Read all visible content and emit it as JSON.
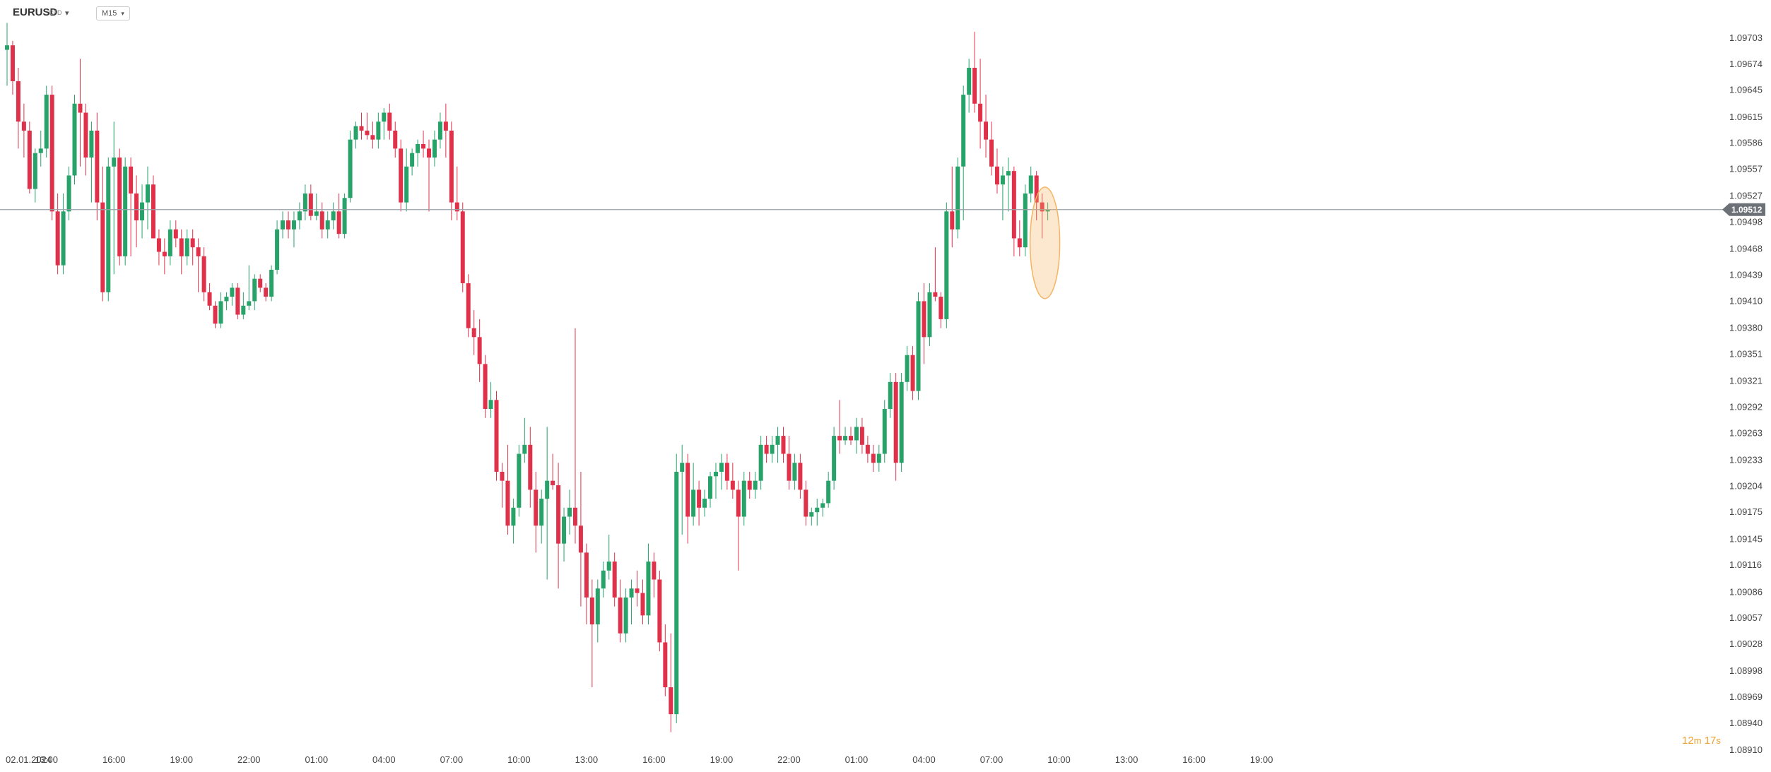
{
  "header": {
    "symbol": "EURUSD",
    "instrument_type": "CFD",
    "timeframe": "M15"
  },
  "countdown": {
    "minutes": "12",
    "minutes_unit": "m",
    "seconds": "17",
    "seconds_unit": "s"
  },
  "colors": {
    "up": "#27a36a",
    "down": "#e0314b",
    "current_price_line": "#9aa0a6",
    "badge": "#6b7177",
    "highlight": "#f5b461"
  },
  "chart_data": {
    "type": "candlestick",
    "symbol": "EURUSD",
    "timeframe": "M15",
    "ylim": [
      1.0891,
      1.0973
    ],
    "y_ticks": [
      "1.09703",
      "1.09674",
      "1.09645",
      "1.09615",
      "1.09586",
      "1.09557",
      "1.09527",
      "1.09498",
      "1.09468",
      "1.09439",
      "1.09410",
      "1.09380",
      "1.09351",
      "1.09321",
      "1.09292",
      "1.09263",
      "1.09233",
      "1.09204",
      "1.09175",
      "1.09145",
      "1.09116",
      "1.09086",
      "1.09057",
      "1.09028",
      "1.08998",
      "1.08969",
      "1.08940",
      "1.08910"
    ],
    "current_price": "1.09512",
    "x_ticks": [
      "02.01.2024",
      "13:00",
      "16:00",
      "19:00",
      "22:00",
      "01:00",
      "04:00",
      "07:00",
      "10:00",
      "13:00",
      "16:00",
      "19:00",
      "22:00",
      "01:00",
      "04:00",
      "07:00",
      "10:00",
      "13:00",
      "16:00",
      "19:00"
    ],
    "candles_per_hour": 4,
    "first_tick_candle_index": 7,
    "candles": [
      [
        1.0969,
        1.0972,
        1.0965,
        1.09695
      ],
      [
        1.09695,
        1.097,
        1.0964,
        1.09655
      ],
      [
        1.09655,
        1.0967,
        1.0958,
        1.0961
      ],
      [
        1.0961,
        1.0963,
        1.0957,
        1.096
      ],
      [
        1.096,
        1.0961,
        1.0953,
        1.09535
      ],
      [
        1.09535,
        1.0958,
        1.0952,
        1.09575
      ],
      [
        1.09575,
        1.096,
        1.0956,
        1.0958
      ],
      [
        1.0958,
        1.0965,
        1.0957,
        1.0964
      ],
      [
        1.0964,
        1.0965,
        1.095,
        1.0951
      ],
      [
        1.0951,
        1.0953,
        1.0944,
        1.0945
      ],
      [
        1.0945,
        1.0953,
        1.0944,
        1.0951
      ],
      [
        1.0951,
        1.0956,
        1.095,
        1.0955
      ],
      [
        1.0955,
        1.0964,
        1.0954,
        1.0963
      ],
      [
        1.0963,
        1.0968,
        1.0956,
        1.0962
      ],
      [
        1.0962,
        1.0963,
        1.0955,
        1.0957
      ],
      [
        1.0957,
        1.0961,
        1.0952,
        1.096
      ],
      [
        1.096,
        1.0962,
        1.095,
        1.0952
      ],
      [
        1.0952,
        1.0956,
        1.0941,
        1.0942
      ],
      [
        1.0942,
        1.0957,
        1.0941,
        1.0956
      ],
      [
        1.0956,
        1.0961,
        1.0944,
        1.0957
      ],
      [
        1.0957,
        1.0958,
        1.0945,
        1.0946
      ],
      [
        1.0946,
        1.0957,
        1.0945,
        1.0956
      ],
      [
        1.0956,
        1.0957,
        1.0946,
        1.0953
      ],
      [
        1.0953,
        1.0955,
        1.0947,
        1.095
      ],
      [
        1.095,
        1.0954,
        1.0948,
        1.0952
      ],
      [
        1.0952,
        1.0956,
        1.0949,
        1.0954
      ],
      [
        1.0954,
        1.0955,
        1.0948,
        1.0948
      ],
      [
        1.0948,
        1.0949,
        1.0945,
        1.09465
      ],
      [
        1.09465,
        1.0948,
        1.0944,
        1.0946
      ],
      [
        1.0946,
        1.095,
        1.0945,
        1.0949
      ],
      [
        1.0949,
        1.095,
        1.0947,
        1.0948
      ],
      [
        1.0948,
        1.0949,
        1.0944,
        1.0946
      ],
      [
        1.0946,
        1.0949,
        1.0945,
        1.0948
      ],
      [
        1.0948,
        1.0949,
        1.0945,
        1.0947
      ],
      [
        1.0947,
        1.0948,
        1.0942,
        1.0946
      ],
      [
        1.0946,
        1.0947,
        1.0941,
        1.0942
      ],
      [
        1.0942,
        1.0943,
        1.094,
        1.09405
      ],
      [
        1.09405,
        1.0941,
        1.0938,
        1.09385
      ],
      [
        1.09385,
        1.0942,
        1.0938,
        1.0941
      ],
      [
        1.0941,
        1.0942,
        1.094,
        1.09415
      ],
      [
        1.09415,
        1.0943,
        1.09405,
        1.09425
      ],
      [
        1.09425,
        1.0943,
        1.0939,
        1.09395
      ],
      [
        1.09395,
        1.0942,
        1.0939,
        1.09405
      ],
      [
        1.09405,
        1.0945,
        1.094,
        1.0941
      ],
      [
        1.0941,
        1.0944,
        1.094,
        1.09435
      ],
      [
        1.09435,
        1.0944,
        1.0942,
        1.09425
      ],
      [
        1.09425,
        1.0943,
        1.0941,
        1.09415
      ],
      [
        1.09415,
        1.0945,
        1.0941,
        1.09445
      ],
      [
        1.09445,
        1.095,
        1.0944,
        1.0949
      ],
      [
        1.0949,
        1.0951,
        1.0948,
        1.095
      ],
      [
        1.095,
        1.0951,
        1.0948,
        1.0949
      ],
      [
        1.0949,
        1.0951,
        1.0947,
        1.095
      ],
      [
        1.095,
        1.0952,
        1.0949,
        1.0951
      ],
      [
        1.0951,
        1.0954,
        1.095,
        1.0953
      ],
      [
        1.0953,
        1.0954,
        1.095,
        1.09505
      ],
      [
        1.09505,
        1.0953,
        1.095,
        1.0951
      ],
      [
        1.0951,
        1.0952,
        1.0948,
        1.0949
      ],
      [
        1.0949,
        1.0951,
        1.0948,
        1.095
      ],
      [
        1.095,
        1.0952,
        1.0949,
        1.0951
      ],
      [
        1.0951,
        1.0953,
        1.0948,
        1.09485
      ],
      [
        1.09485,
        1.0953,
        1.0948,
        1.09525
      ],
      [
        1.09525,
        1.096,
        1.0952,
        1.0959
      ],
      [
        1.0959,
        1.0961,
        1.0958,
        1.09605
      ],
      [
        1.09605,
        1.0962,
        1.0959,
        1.096
      ],
      [
        1.096,
        1.0962,
        1.0959,
        1.09595
      ],
      [
        1.09595,
        1.0961,
        1.0958,
        1.0959
      ],
      [
        1.0959,
        1.0962,
        1.0958,
        1.0961
      ],
      [
        1.0961,
        1.09625,
        1.0959,
        1.0962
      ],
      [
        1.0962,
        1.0963,
        1.0959,
        1.096
      ],
      [
        1.096,
        1.0961,
        1.0957,
        1.0958
      ],
      [
        1.0958,
        1.0959,
        1.0951,
        1.0952
      ],
      [
        1.0952,
        1.0958,
        1.0951,
        1.0956
      ],
      [
        1.0956,
        1.0958,
        1.0955,
        1.09575
      ],
      [
        1.09575,
        1.0959,
        1.0956,
        1.09585
      ],
      [
        1.09585,
        1.096,
        1.0957,
        1.0958
      ],
      [
        1.0958,
        1.0959,
        1.0951,
        1.0957
      ],
      [
        1.0957,
        1.096,
        1.0956,
        1.0959
      ],
      [
        1.0959,
        1.0962,
        1.0958,
        1.0961
      ],
      [
        1.0961,
        1.0963,
        1.0957,
        1.096
      ],
      [
        1.096,
        1.0961,
        1.095,
        1.0952
      ],
      [
        1.0952,
        1.0956,
        1.095,
        1.0951
      ],
      [
        1.0951,
        1.0952,
        1.0942,
        1.0943
      ],
      [
        1.0943,
        1.0944,
        1.0937,
        1.0938
      ],
      [
        1.0938,
        1.094,
        1.0935,
        1.0937
      ],
      [
        1.0937,
        1.0939,
        1.0932,
        1.0934
      ],
      [
        1.0934,
        1.0935,
        1.0928,
        1.0929
      ],
      [
        1.0929,
        1.0932,
        1.0928,
        1.093
      ],
      [
        1.093,
        1.0931,
        1.0921,
        1.0922
      ],
      [
        1.0922,
        1.0923,
        1.0918,
        1.0921
      ],
      [
        1.0921,
        1.0925,
        1.0915,
        1.0916
      ],
      [
        1.0916,
        1.0919,
        1.0914,
        1.0918
      ],
      [
        1.0918,
        1.0925,
        1.0917,
        1.0924
      ],
      [
        1.0924,
        1.0928,
        1.0923,
        1.0925
      ],
      [
        1.0925,
        1.0927,
        1.0918,
        1.092
      ],
      [
        1.092,
        1.0922,
        1.0913,
        1.0916
      ],
      [
        1.0916,
        1.092,
        1.0914,
        1.0919
      ],
      [
        1.0919,
        1.0927,
        1.091,
        1.0921
      ],
      [
        1.0921,
        1.0924,
        1.092,
        1.09205
      ],
      [
        1.09205,
        1.0923,
        1.0909,
        1.0914
      ],
      [
        1.0914,
        1.0918,
        1.0912,
        1.0917
      ],
      [
        1.0917,
        1.092,
        1.0915,
        1.0918
      ],
      [
        1.0918,
        1.0938,
        1.0914,
        1.0916
      ],
      [
        1.0916,
        1.0922,
        1.0907,
        1.0913
      ],
      [
        1.0913,
        1.0914,
        1.0905,
        1.0908
      ],
      [
        1.0908,
        1.091,
        1.0898,
        1.0905
      ],
      [
        1.0905,
        1.091,
        1.0903,
        1.0909
      ],
      [
        1.0909,
        1.0912,
        1.0908,
        1.0911
      ],
      [
        1.0911,
        1.0915,
        1.091,
        1.0912
      ],
      [
        1.0912,
        1.0913,
        1.0907,
        1.0908
      ],
      [
        1.0908,
        1.091,
        1.0903,
        1.0904
      ],
      [
        1.0904,
        1.0909,
        1.0903,
        1.0908
      ],
      [
        1.0908,
        1.091,
        1.0905,
        1.0909
      ],
      [
        1.0909,
        1.0911,
        1.0907,
        1.09085
      ],
      [
        1.09085,
        1.091,
        1.0905,
        1.0906
      ],
      [
        1.0906,
        1.0914,
        1.0905,
        1.0912
      ],
      [
        1.0912,
        1.0913,
        1.0908,
        1.091
      ],
      [
        1.091,
        1.0911,
        1.0902,
        1.0903
      ],
      [
        1.0903,
        1.0905,
        1.0897,
        1.0898
      ],
      [
        1.0898,
        1.0904,
        1.0893,
        1.0895
      ],
      [
        1.0895,
        1.0924,
        1.0894,
        1.0922
      ],
      [
        1.0922,
        1.0925,
        1.0915,
        1.0923
      ],
      [
        1.0923,
        1.0924,
        1.0914,
        1.0917
      ],
      [
        1.0917,
        1.0923,
        1.0916,
        1.092
      ],
      [
        1.092,
        1.0921,
        1.0916,
        1.0918
      ],
      [
        1.0918,
        1.092,
        1.0917,
        1.0919
      ],
      [
        1.0919,
        1.0922,
        1.0918,
        1.09215
      ],
      [
        1.09215,
        1.0923,
        1.0919,
        1.0922
      ],
      [
        1.0922,
        1.0924,
        1.092,
        1.0923
      ],
      [
        1.0923,
        1.0924,
        1.092,
        1.0921
      ],
      [
        1.0921,
        1.0923,
        1.0919,
        1.092
      ],
      [
        1.092,
        1.0921,
        1.0911,
        1.0917
      ],
      [
        1.0917,
        1.0922,
        1.0916,
        1.0921
      ],
      [
        1.0921,
        1.0922,
        1.0919,
        1.092
      ],
      [
        1.092,
        1.0922,
        1.0919,
        1.0921
      ],
      [
        1.0921,
        1.0926,
        1.092,
        1.0925
      ],
      [
        1.0925,
        1.0926,
        1.0923,
        1.0924
      ],
      [
        1.0924,
        1.0926,
        1.0923,
        1.0925
      ],
      [
        1.0925,
        1.0927,
        1.0923,
        1.0926
      ],
      [
        1.0926,
        1.0927,
        1.0923,
        1.0924
      ],
      [
        1.0924,
        1.0926,
        1.092,
        1.0921
      ],
      [
        1.0921,
        1.0924,
        1.092,
        1.0923
      ],
      [
        1.0923,
        1.0924,
        1.0919,
        1.092
      ],
      [
        1.092,
        1.0921,
        1.0916,
        1.0917
      ],
      [
        1.0917,
        1.0918,
        1.0916,
        1.09175
      ],
      [
        1.09175,
        1.0919,
        1.0916,
        1.0918
      ],
      [
        1.0918,
        1.0919,
        1.0917,
        1.09185
      ],
      [
        1.09185,
        1.0922,
        1.0918,
        1.0921
      ],
      [
        1.0921,
        1.0927,
        1.092,
        1.0926
      ],
      [
        1.0926,
        1.093,
        1.0924,
        1.09255
      ],
      [
        1.09255,
        1.0927,
        1.0925,
        1.0926
      ],
      [
        1.0926,
        1.0927,
        1.0925,
        1.09255
      ],
      [
        1.09255,
        1.0928,
        1.0924,
        1.0927
      ],
      [
        1.0927,
        1.0928,
        1.0924,
        1.0925
      ],
      [
        1.0925,
        1.0926,
        1.0923,
        1.0924
      ],
      [
        1.0924,
        1.0925,
        1.0922,
        1.0923
      ],
      [
        1.0923,
        1.0925,
        1.0922,
        1.0924
      ],
      [
        1.0924,
        1.093,
        1.0923,
        1.0929
      ],
      [
        1.0929,
        1.0933,
        1.0928,
        1.0932
      ],
      [
        1.0932,
        1.0933,
        1.0921,
        1.0923
      ],
      [
        1.0923,
        1.0933,
        1.0922,
        1.0932
      ],
      [
        1.0932,
        1.0936,
        1.0931,
        1.0935
      ],
      [
        1.0935,
        1.0936,
        1.093,
        1.0931
      ],
      [
        1.0931,
        1.0942,
        1.093,
        1.0941
      ],
      [
        1.0941,
        1.0943,
        1.0934,
        1.0937
      ],
      [
        1.0937,
        1.0943,
        1.0936,
        1.0942
      ],
      [
        1.0942,
        1.0947,
        1.0941,
        1.09415
      ],
      [
        1.09415,
        1.0942,
        1.0938,
        1.0939
      ],
      [
        1.0939,
        1.0952,
        1.0938,
        1.0951
      ],
      [
        1.0951,
        1.0956,
        1.0947,
        1.0949
      ],
      [
        1.0949,
        1.0957,
        1.0948,
        1.0956
      ],
      [
        1.0956,
        1.0965,
        1.095,
        1.0964
      ],
      [
        1.0964,
        1.0968,
        1.0962,
        1.0967
      ],
      [
        1.0967,
        1.0971,
        1.0962,
        1.0963
      ],
      [
        1.0963,
        1.0968,
        1.0958,
        1.0961
      ],
      [
        1.0961,
        1.0964,
        1.0957,
        1.0959
      ],
      [
        1.0959,
        1.0961,
        1.0955,
        1.0956
      ],
      [
        1.0956,
        1.0958,
        1.0953,
        1.0954
      ],
      [
        1.0954,
        1.0956,
        1.095,
        1.0955
      ],
      [
        1.0955,
        1.0957,
        1.0951,
        1.09555
      ],
      [
        1.09555,
        1.0956,
        1.0946,
        1.0948
      ],
      [
        1.0948,
        1.095,
        1.0946,
        1.0947
      ],
      [
        1.0947,
        1.0954,
        1.0946,
        1.0953
      ],
      [
        1.0953,
        1.0956,
        1.0952,
        1.0955
      ],
      [
        1.0955,
        1.09555,
        1.095,
        1.0952
      ],
      [
        1.0952,
        1.0953,
        1.0948,
        1.0951
      ],
      [
        1.0951,
        1.0952,
        1.095,
        1.09512
      ]
    ]
  }
}
